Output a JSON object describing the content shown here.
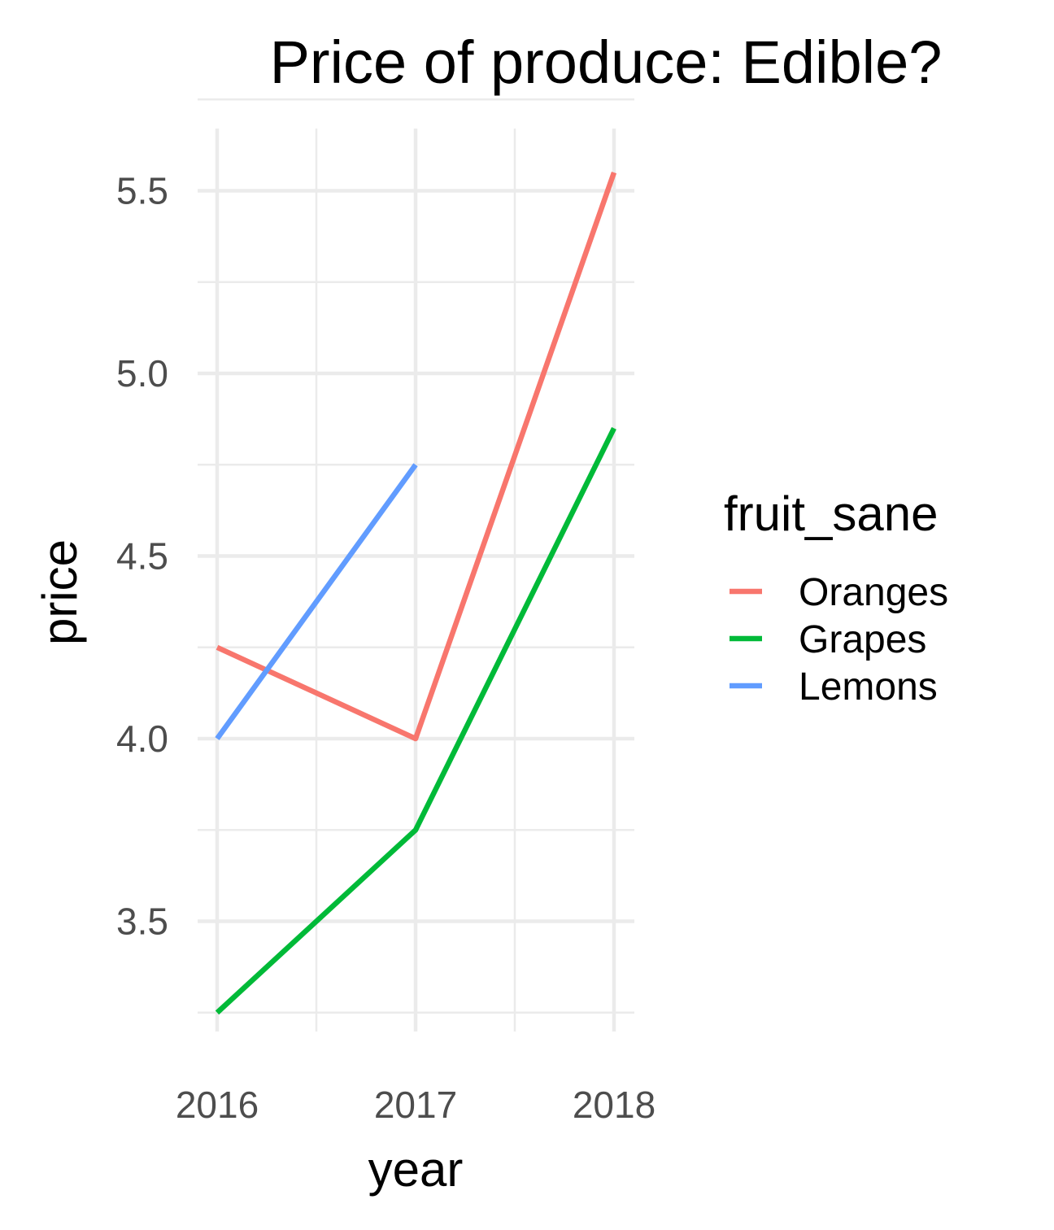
{
  "chart_data": {
    "type": "line",
    "title": "Price of produce: Edible?",
    "xlabel": "year",
    "ylabel": "price",
    "x": [
      2016,
      2017,
      2018
    ],
    "x_ticks": [
      "2016",
      "2017",
      "2018"
    ],
    "y_ticks": [
      "3.5",
      "4.0",
      "4.5",
      "5.0",
      "5.5"
    ],
    "xlim": [
      2016,
      2018
    ],
    "ylim": [
      3.25,
      5.55
    ],
    "grid": true,
    "legend": {
      "title": "fruit_sane",
      "placement": "right"
    },
    "series": [
      {
        "name": "Oranges",
        "color": "#f8766d",
        "x": [
          2016,
          2017,
          2018
        ],
        "values": [
          4.25,
          4.0,
          5.55
        ]
      },
      {
        "name": "Grapes",
        "color": "#00ba38",
        "x": [
          2016,
          2017,
          2018
        ],
        "values": [
          3.25,
          3.75,
          4.85
        ]
      },
      {
        "name": "Lemons",
        "color": "#619cff",
        "x": [
          2016,
          2017
        ],
        "values": [
          4.0,
          4.75
        ]
      }
    ]
  }
}
